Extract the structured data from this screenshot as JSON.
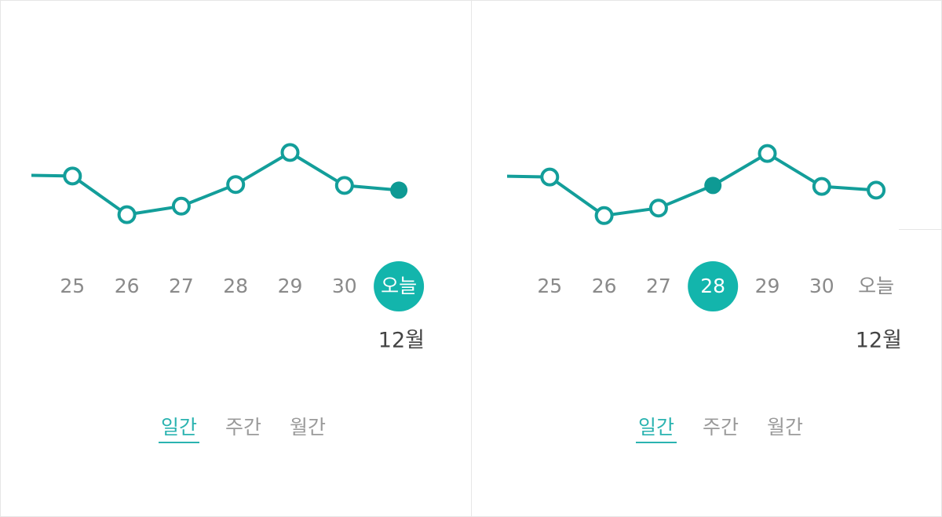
{
  "chart_data": [
    {
      "type": "line",
      "categories": [
        null,
        "25",
        "26",
        "27",
        "28",
        "29",
        "30",
        "오늘"
      ],
      "values": [
        64,
        63,
        22,
        31,
        54,
        88,
        53,
        48
      ],
      "color": "#139e9a",
      "ylim": [
        0,
        100
      ],
      "selected": 7
    },
    {
      "type": "line",
      "categories": [
        null,
        "25",
        "26",
        "27",
        "28",
        "29",
        "30",
        "오늘"
      ],
      "values": [
        63,
        62,
        21,
        29,
        53,
        87,
        52,
        48
      ],
      "color": "#139e9a",
      "ylim": [
        0,
        100
      ],
      "selected": 4
    }
  ],
  "panels": [
    {
      "month": "12월",
      "tabs": [
        "일간",
        "주간",
        "월간"
      ],
      "active_tab": 0
    },
    {
      "month": "12월",
      "tabs": [
        "일간",
        "주간",
        "월간"
      ],
      "active_tab": 0
    }
  ]
}
